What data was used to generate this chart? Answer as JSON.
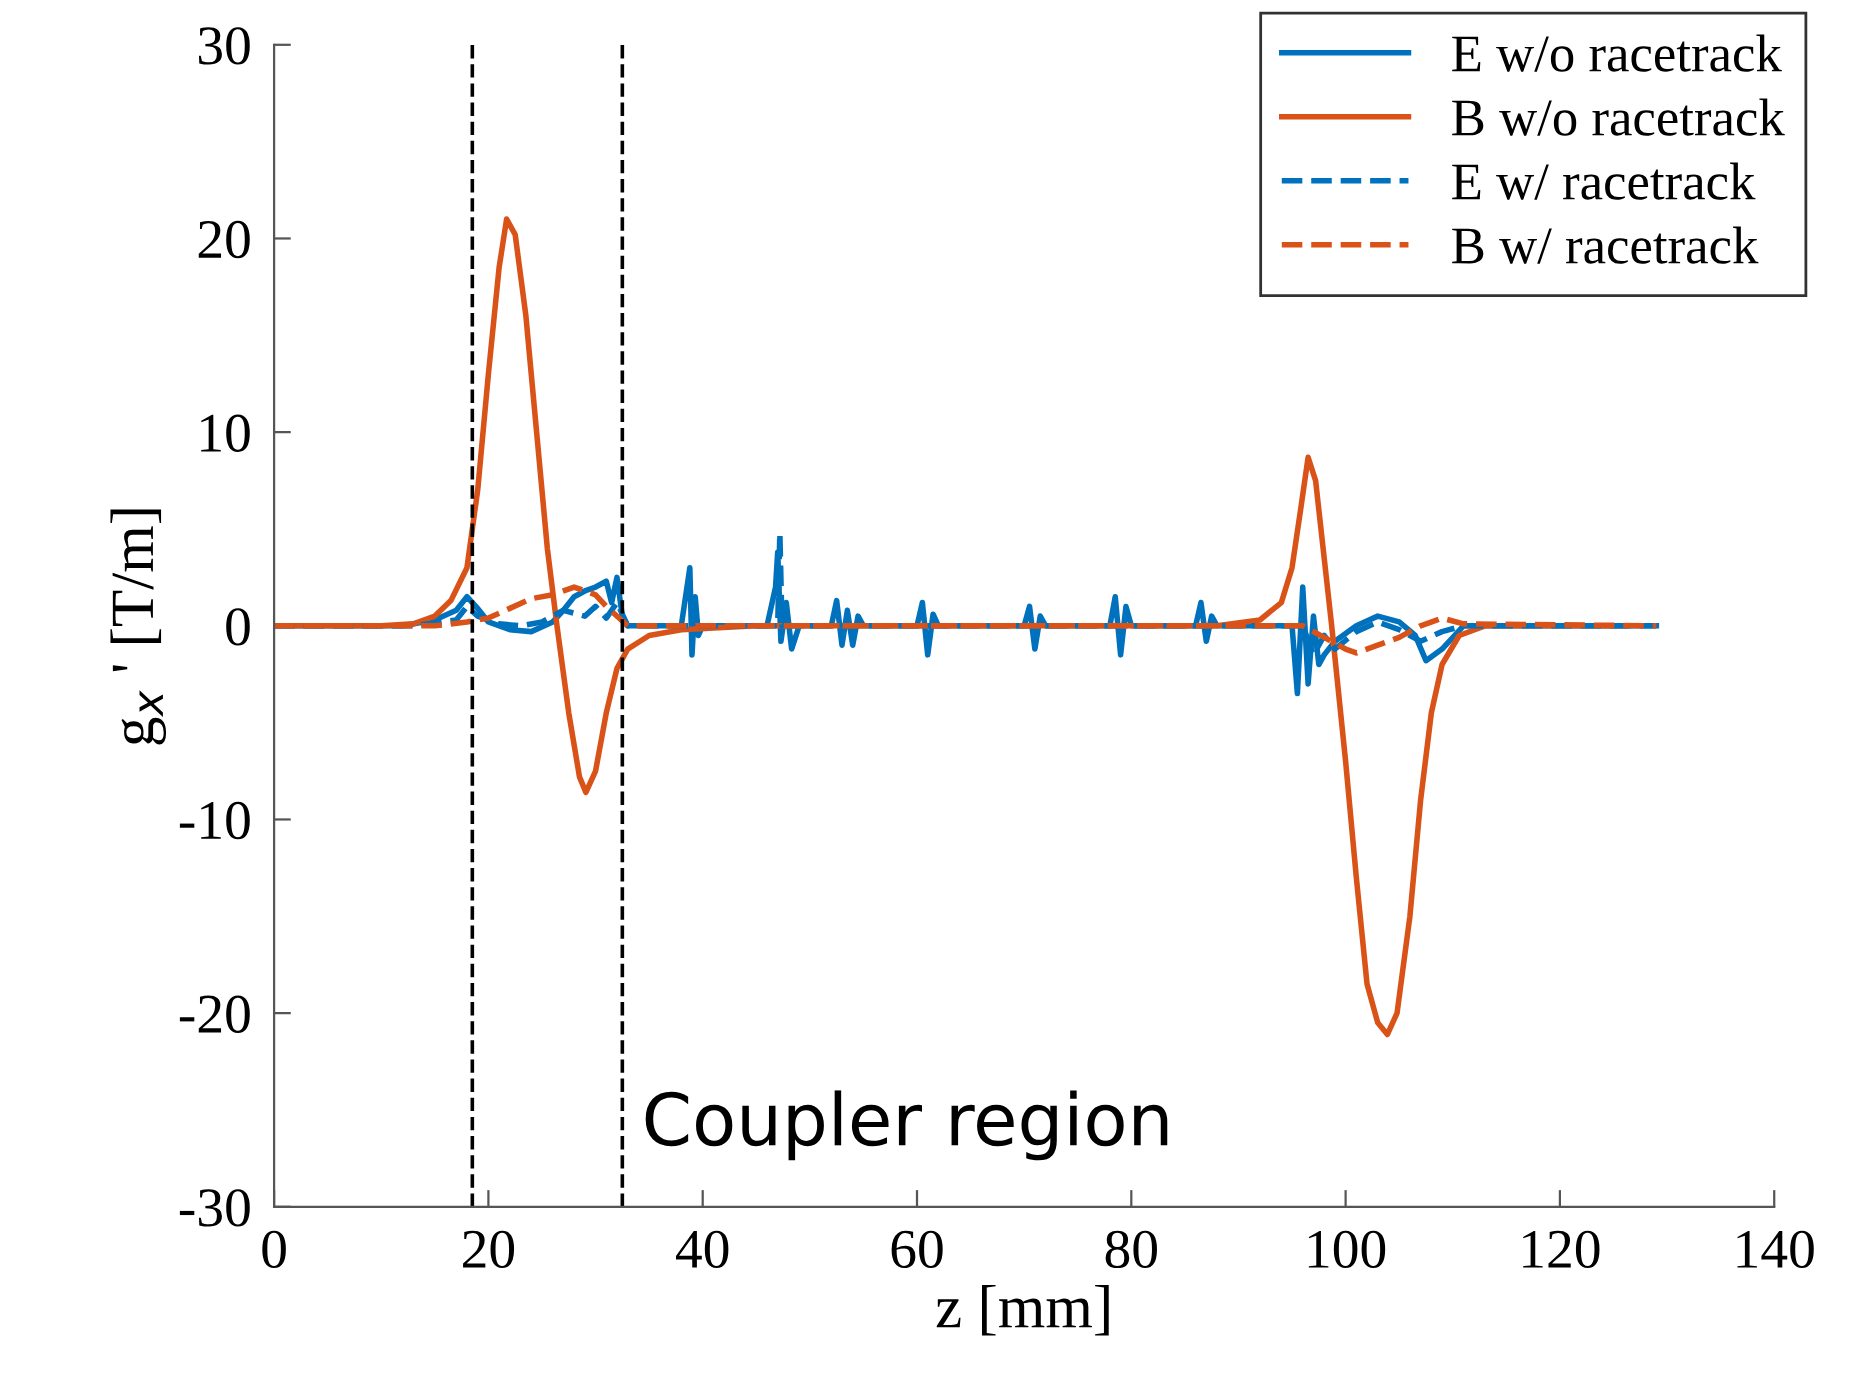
{
  "chart_data": {
    "type": "line",
    "xlabel": "z [mm]",
    "ylabel": "g$_{x}$ ' [T/m]",
    "xlim": [
      0,
      140
    ],
    "ylim": [
      -30,
      30
    ],
    "xticks": [
      0,
      20,
      40,
      60,
      80,
      100,
      120,
      140
    ],
    "yticks": [
      -30,
      -20,
      -10,
      0,
      10,
      20,
      30
    ],
    "grid": false,
    "legend": "top right",
    "marker": "none",
    "ref_lines": [
      {
        "axis": "x",
        "value": 18.5,
        "color": "#000000",
        "line_style": "dashed"
      },
      {
        "axis": "x",
        "value": 32.5,
        "color": "#000000",
        "line_style": "dashed"
      }
    ],
    "annotations": [
      "Coupler region"
    ],
    "series": [
      {
        "name": "E w/o racetrack",
        "color": "#0072bd",
        "line_style": "solid",
        "x": [
          0,
          12,
          15,
          17,
          18,
          19,
          20,
          22,
          24,
          26,
          27,
          28,
          29,
          30,
          31,
          31.5,
          32,
          32.5,
          33,
          38,
          38.8,
          39,
          39.3,
          39.6,
          40,
          46,
          46.8,
          47,
          47.3,
          47.8,
          48.3,
          49,
          52,
          52.5,
          53,
          53.5,
          54,
          54.5,
          55,
          60,
          60.5,
          61,
          61.5,
          62,
          68,
          70,
          70.5,
          71,
          71.5,
          72,
          78,
          78.5,
          79,
          79.5,
          80,
          86,
          86.5,
          87,
          87.5,
          88,
          95,
          95.5,
          96,
          96.5,
          97,
          97.5,
          98,
          99,
          101,
          103,
          105,
          106.5,
          107.5,
          109,
          111,
          113,
          129
        ],
        "values": [
          0,
          0,
          0.3,
          0.8,
          1.5,
          0.9,
          0.2,
          -0.2,
          -0.3,
          0.2,
          0.8,
          1.5,
          1.8,
          2,
          2.3,
          1.2,
          2.5,
          0.5,
          0,
          0,
          3,
          -1.5,
          1.5,
          -0.5,
          0,
          0,
          2,
          3.8,
          -0.8,
          1.2,
          -1.2,
          0,
          0,
          1.3,
          -1,
          0.8,
          -1,
          0.5,
          0,
          0,
          1.2,
          -1.5,
          0.6,
          0,
          0,
          0,
          1,
          -1.2,
          0.5,
          0,
          0,
          1.5,
          -1.5,
          1,
          0,
          0,
          1.2,
          -0.8,
          0.5,
          0,
          0,
          -3.5,
          2,
          -3,
          0.5,
          -2,
          -1.5,
          -0.8,
          0,
          0.5,
          0.2,
          -0.5,
          -1.8,
          -1.2,
          0,
          0,
          0
        ]
      },
      {
        "name": "B w/o racetrack",
        "color": "#d95319",
        "line_style": "solid",
        "x": [
          0,
          10,
          13,
          15,
          16.5,
          18,
          19,
          20,
          21,
          21.7,
          22.5,
          23.5,
          24.5,
          25.5,
          26.4,
          27.5,
          28.5,
          29.1,
          30,
          31,
          32,
          33,
          35,
          38,
          45,
          88,
          92,
          94,
          95,
          95.8,
          96.5,
          97.2,
          98,
          98.7,
          100,
          101,
          102,
          103,
          103.9,
          104.8,
          106,
          107,
          108,
          109,
          110.6,
          113,
          126
        ],
        "values": [
          0,
          0,
          0.1,
          0.5,
          1.3,
          3,
          7,
          13,
          18.5,
          21,
          20.2,
          16,
          10,
          4,
          0,
          -4.5,
          -7.8,
          -8.6,
          -7.5,
          -4.5,
          -2.2,
          -1.2,
          -0.5,
          -0.2,
          0,
          0,
          0.3,
          1.2,
          3,
          6,
          8.7,
          7.5,
          3.5,
          0,
          -7,
          -13,
          -18.5,
          -20.5,
          -21.1,
          -20,
          -15,
          -9,
          -4.5,
          -2,
          -0.5,
          0,
          0
        ]
      },
      {
        "name": "E w/ racetrack",
        "color": "#0072bd",
        "line_style": "dashed",
        "x": [
          0,
          13,
          17,
          18,
          19,
          21,
          23,
          25,
          27,
          29,
          30,
          31,
          32,
          33,
          38,
          47,
          47.2,
          47.4,
          60,
          96,
          97,
          98,
          99,
          101,
          103,
          105,
          107,
          109,
          111,
          129
        ],
        "values": [
          0,
          0,
          0.3,
          1,
          0.5,
          0.1,
          0,
          0.2,
          0.8,
          0.5,
          1,
          0.4,
          1.2,
          0,
          0,
          0,
          4.8,
          0,
          0,
          0,
          -1.5,
          -0.5,
          -1.2,
          -0.3,
          0.2,
          -0.2,
          -0.8,
          -0.3,
          0,
          0
        ]
      },
      {
        "name": "B w/ racetrack",
        "color": "#d95319",
        "line_style": "dashed",
        "x": [
          0,
          15,
          18,
          20,
          22,
          24,
          26,
          28,
          30,
          31,
          33,
          38,
          96,
          98,
          100,
          101,
          103,
          105,
          107,
          109,
          111,
          129
        ],
        "values": [
          0,
          0,
          0.2,
          0.4,
          0.9,
          1.4,
          1.6,
          2,
          1.6,
          1,
          0,
          0,
          0,
          -0.6,
          -1.2,
          -1.4,
          -1,
          -0.6,
          0,
          0.4,
          0.1,
          0
        ]
      }
    ]
  }
}
